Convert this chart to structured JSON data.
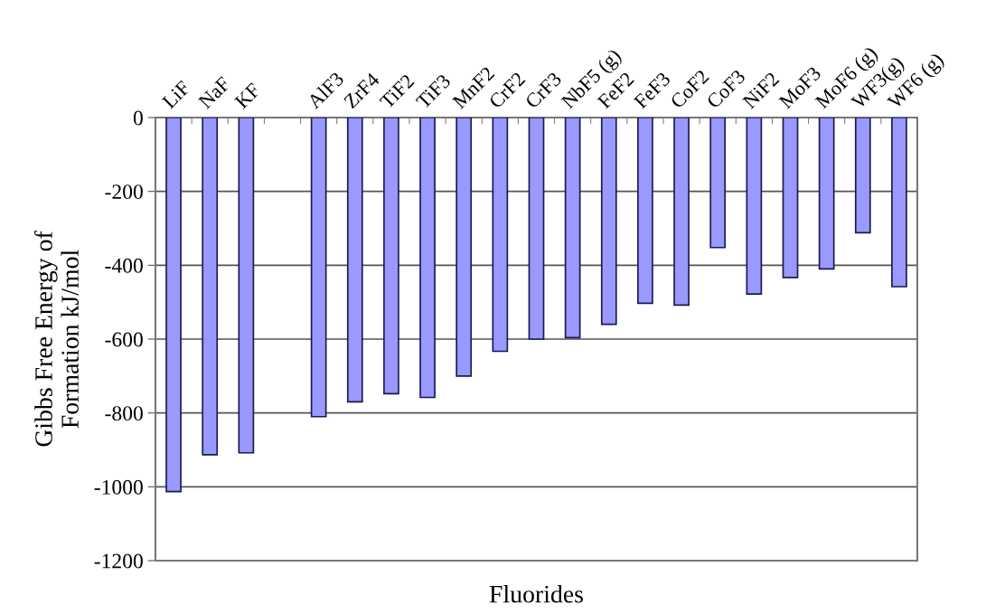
{
  "chart_data": {
    "type": "bar",
    "xlabel": "Fluorides",
    "ylabel": "Gibbs Free Energy of\nFormation kJ/mol",
    "categories": [
      "LiF",
      "NaF",
      "KF",
      null,
      "AlF3",
      "ZrF4",
      "TiF2",
      "TiF3",
      "MnF2",
      "CrF2",
      "CrF3",
      "NbF5 (g)",
      "FeF2",
      "FeF3",
      "CoF2",
      "CoF3",
      "NiF2",
      "MoF3",
      "MoF6 (g)",
      "WF3(g)",
      "WF6 (g)"
    ],
    "values": [
      -1013,
      -913,
      -908,
      null,
      -810,
      -770,
      -748,
      -758,
      -700,
      -633,
      -600,
      -596,
      -560,
      -503,
      -508,
      -352,
      -478,
      -433,
      -410,
      -312,
      -458
    ],
    "color": "#9999ff",
    "ylim": [
      -1200,
      0
    ],
    "yticks": [
      -1200,
      -1000,
      -800,
      -600,
      -400,
      -200,
      0
    ],
    "grid": "y"
  }
}
